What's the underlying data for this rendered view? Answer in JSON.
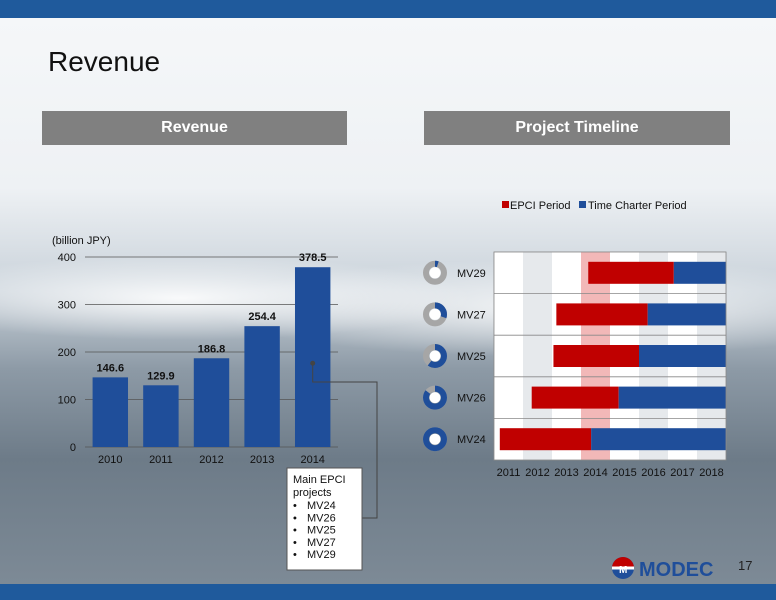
{
  "slide": {
    "title": "Revenue",
    "page_number": "17",
    "brand": "MODEC"
  },
  "left_panel": {
    "header": "Revenue"
  },
  "right_panel": {
    "header": "Project Timeline"
  },
  "colors": {
    "bar": "#1f4e9a",
    "epci": "#c00000",
    "charter": "#1f4e9a",
    "highlight": "#f2b8b8",
    "header": "#808080"
  },
  "chart_data": [
    {
      "type": "bar",
      "title": "",
      "ylabel": "(billion JPY)",
      "categories": [
        "2010",
        "2011",
        "2012",
        "2013",
        "2014"
      ],
      "values": [
        146.6,
        129.9,
        186.8,
        254.4,
        378.5
      ],
      "value_labels": [
        "146.6",
        "129.9",
        "186.8",
        "254.4",
        "378.5"
      ],
      "ylim": [
        0,
        400
      ],
      "yticks": [
        0,
        100,
        200,
        300,
        400
      ],
      "grid": true,
      "annotation": {
        "title": "Main EPCI projects",
        "items": [
          "MV24",
          "MV26",
          "MV25",
          "MV27",
          "MV29"
        ],
        "target_category": "2014"
      }
    },
    {
      "type": "gantt",
      "legend": [
        "EPCI Period",
        "Time Charter Period"
      ],
      "legend_position": "top-right",
      "xticks": [
        "2011",
        "2012",
        "2013",
        "2014",
        "2015",
        "2016",
        "2017",
        "2018"
      ],
      "xlim": [
        2011,
        2019
      ],
      "highlight_year": 2014,
      "rows": [
        {
          "name": "MV29",
          "epci_start": 2014.25,
          "epci_end": 2017.2,
          "charter_start": 2017.2,
          "charter_end": 2019,
          "progress": 0.05
        },
        {
          "name": "MV27",
          "epci_start": 2013.15,
          "epci_end": 2016.3,
          "charter_start": 2016.3,
          "charter_end": 2019,
          "progress": 0.3
        },
        {
          "name": "MV25",
          "epci_start": 2013.05,
          "epci_end": 2016.0,
          "charter_start": 2016.0,
          "charter_end": 2019,
          "progress": 0.6
        },
        {
          "name": "MV26",
          "epci_start": 2012.3,
          "epci_end": 2015.3,
          "charter_start": 2015.3,
          "charter_end": 2019,
          "progress": 0.85
        },
        {
          "name": "MV24",
          "epci_start": 2011.2,
          "epci_end": 2014.35,
          "charter_start": 2014.35,
          "charter_end": 2019,
          "progress": 1.0
        }
      ]
    }
  ]
}
